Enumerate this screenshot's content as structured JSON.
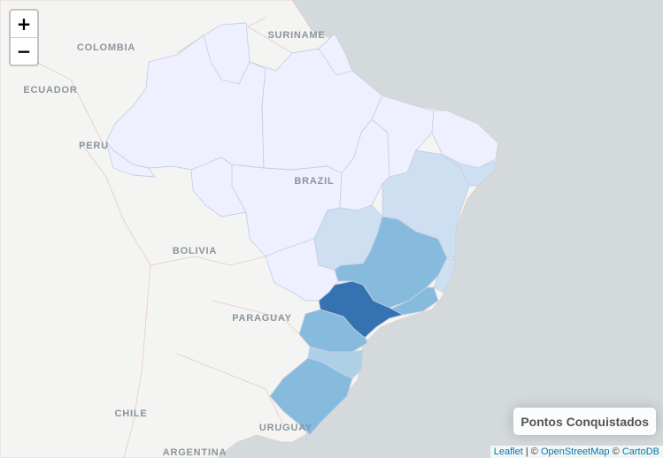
{
  "zoom": {
    "in_label": "+",
    "out_label": "−"
  },
  "labels": {
    "suriname": "SURINAME",
    "colombia": "COLOMBIA",
    "ecuador": "ECUADOR",
    "peru": "PERU",
    "brazil": "BRAZIL",
    "bolivia": "BOLIVIA",
    "paraguay": "PARAGUAY",
    "chile": "CHILE",
    "uruguay": "URUGUAY",
    "argentina": "ARGENTINA"
  },
  "legend": {
    "title": "Pontos Conquistados"
  },
  "attribution": {
    "leaflet": "Leaflet",
    "sep": " | © ",
    "osm": "OpenStreetMap",
    "sep2": " © ",
    "carto": "CartoDB"
  },
  "colors": {
    "sea": "#d4dadc",
    "land": "#f4f4f2",
    "level_0": "#eff0ff",
    "level_1": "#cddff1",
    "level_2": "#add0e6",
    "level_3": "#86bbde",
    "level_4": "#3572b1"
  }
}
